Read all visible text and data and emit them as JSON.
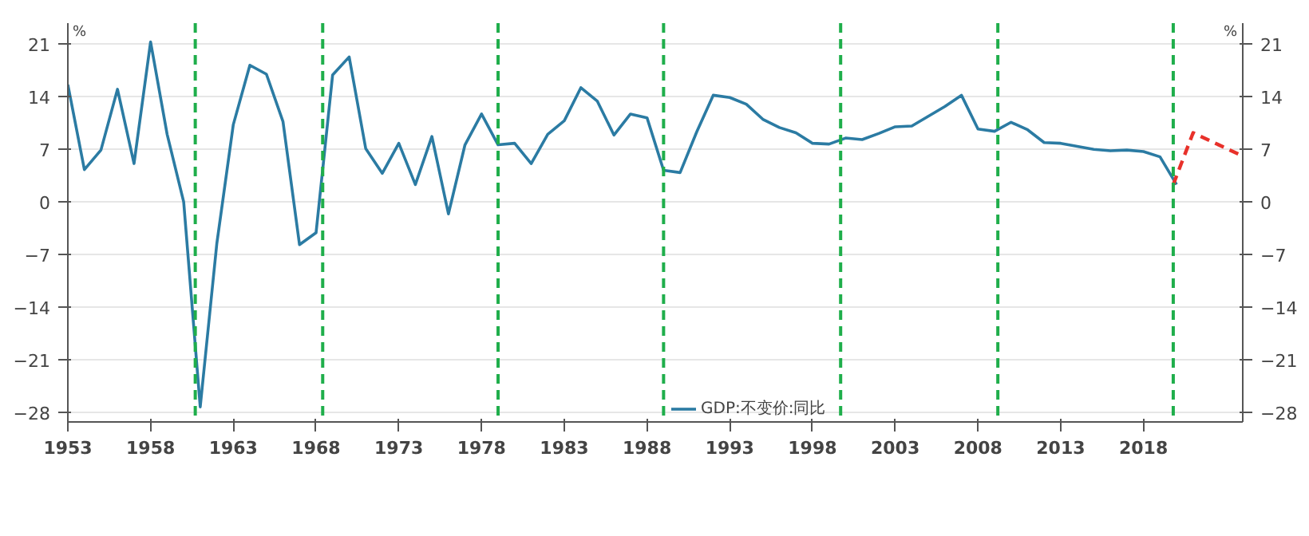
{
  "chart_data": {
    "type": "line",
    "ylabel": "%",
    "y2label": "%",
    "x": [
      1953,
      1954,
      1955,
      1956,
      1957,
      1958,
      1959,
      1960,
      1961,
      1962,
      1963,
      1964,
      1965,
      1966,
      1967,
      1968,
      1969,
      1970,
      1971,
      1972,
      1973,
      1974,
      1975,
      1976,
      1977,
      1978,
      1979,
      1980,
      1981,
      1982,
      1983,
      1984,
      1985,
      1986,
      1987,
      1988,
      1989,
      1990,
      1991,
      1992,
      1993,
      1994,
      1995,
      1996,
      1997,
      1998,
      1999,
      2000,
      2001,
      2002,
      2003,
      2004,
      2005,
      2006,
      2007,
      2008,
      2009,
      2010,
      2011,
      2012,
      2013,
      2014,
      2015,
      2016,
      2017,
      2018,
      2019,
      2020
    ],
    "series": [
      {
        "name": "GDP:不变价:同比",
        "color": "#2b7ba3",
        "values": [
          15.6,
          4.3,
          6.9,
          15.0,
          5.1,
          21.3,
          9.0,
          0.0,
          -27.3,
          -5.6,
          10.3,
          18.2,
          17.0,
          10.7,
          -5.7,
          -4.1,
          16.9,
          19.3,
          7.1,
          3.8,
          7.8,
          2.3,
          8.7,
          -1.6,
          7.6,
          11.7,
          7.6,
          7.8,
          5.1,
          9.0,
          10.8,
          15.2,
          13.4,
          8.9,
          11.7,
          11.2,
          4.2,
          3.9,
          9.3,
          14.2,
          13.9,
          13.0,
          11.0,
          9.9,
          9.2,
          7.8,
          7.7,
          8.5,
          8.3,
          9.1,
          10.0,
          10.1,
          11.4,
          12.7,
          14.2,
          9.7,
          9.4,
          10.6,
          9.6,
          7.9,
          7.8,
          7.4,
          7.0,
          6.8,
          6.9,
          6.7,
          6.0,
          2.3
        ]
      },
      {
        "x": [
          2019.8,
          2021,
          2023.9
        ],
        "color": "#e8312a",
        "line_style": "dashed",
        "values": [
          2.3,
          9.2,
          6.2
        ]
      }
    ],
    "xlim": [
      1953,
      2024
    ],
    "xticks": [
      1953,
      1958,
      1963,
      1968,
      1973,
      1978,
      1983,
      1988,
      1993,
      1998,
      2003,
      2008,
      2013,
      2018
    ],
    "ylim": [
      -29.3,
      23.8
    ],
    "yticks": [
      -28,
      -21,
      -14,
      -7,
      0,
      7,
      14,
      21
    ],
    "y2lim": [
      -29.3,
      23.8
    ],
    "y2ticks": [
      -28,
      -21,
      -14,
      -7,
      0,
      7,
      14,
      21
    ],
    "ref_lines": [
      {
        "axis": "x",
        "value": 1960.7,
        "color": "#1fae4b",
        "line_style": "dashed"
      },
      {
        "axis": "x",
        "value": 1968.4,
        "color": "#1fae4b",
        "line_style": "dashed"
      },
      {
        "axis": "x",
        "value": 1979,
        "color": "#1fae4b",
        "line_style": "dashed"
      },
      {
        "axis": "x",
        "value": 1989,
        "color": "#1fae4b",
        "line_style": "dashed"
      },
      {
        "axis": "x",
        "value": 1999.7,
        "color": "#1fae4b",
        "line_style": "dashed"
      },
      {
        "axis": "x",
        "value": 2009.2,
        "color": "#1fae4b",
        "line_style": "dashed"
      },
      {
        "axis": "x",
        "value": 2019.8,
        "color": "#1fae4b",
        "line_style": "dashed"
      }
    ],
    "grid": "y",
    "legend": "bottom",
    "line_style": "solid"
  }
}
